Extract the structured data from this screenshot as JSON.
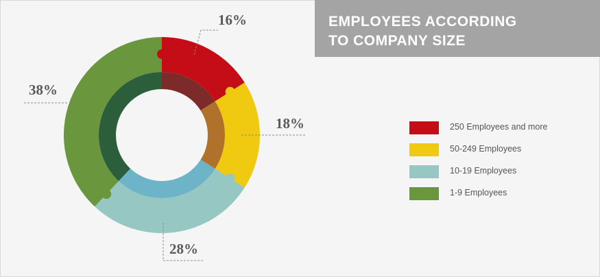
{
  "title": "EMPLOYEES ACCORDING\nTO COMPANY SIZE",
  "chart_data": {
    "type": "pie",
    "variant": "donut",
    "categories": [
      "250 Employees and more",
      "50-249 Employees",
      "10-19 Employees",
      "1-9 Employees"
    ],
    "values": [
      16,
      18,
      28,
      38
    ],
    "value_labels": [
      "16%",
      "18%",
      "28%",
      "38%"
    ],
    "colors": {
      "outer": [
        "#c40d17",
        "#f0c911",
        "#96c7c2",
        "#6a963e"
      ],
      "inner": [
        "#7c2a2a",
        "#b0722a",
        "#6db4c8",
        "#2c5e3c"
      ]
    },
    "legend_position": "right"
  },
  "legend": [
    {
      "label": "250 Employees and more",
      "color": "#c40d17"
    },
    {
      "label": "50-249 Employees",
      "color": "#f0c911"
    },
    {
      "label": "10-19 Employees",
      "color": "#96c7c2"
    },
    {
      "label": "1-9 Employees",
      "color": "#6a963e"
    }
  ]
}
